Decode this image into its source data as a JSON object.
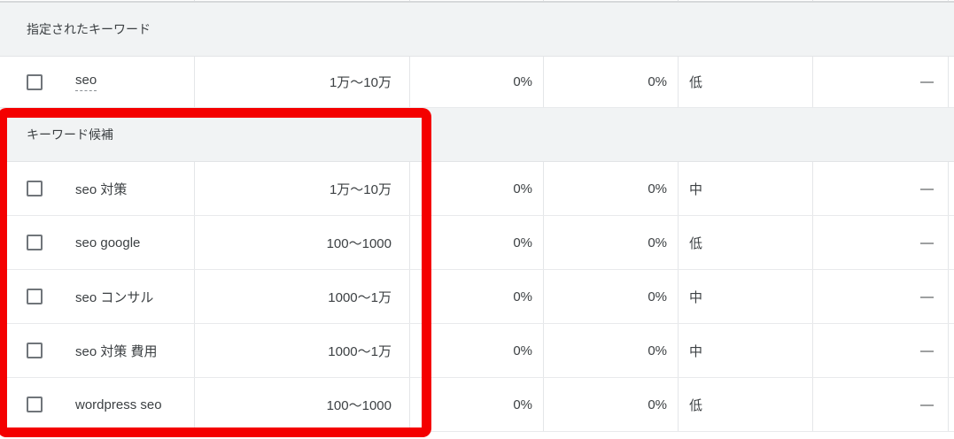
{
  "table": {
    "sections": [
      {
        "header": "指定されたキーワード",
        "rows": [
          {
            "keyword": "seo",
            "volume": "1万〜10万",
            "pct1": "0%",
            "pct2": "0%",
            "competition": "低",
            "extra": "—"
          }
        ]
      },
      {
        "header": "キーワード候補",
        "rows": [
          {
            "keyword": "seo 対策",
            "volume": "1万〜10万",
            "pct1": "0%",
            "pct2": "0%",
            "competition": "中",
            "extra": "—"
          },
          {
            "keyword": "seo google",
            "volume": "100〜1000",
            "pct1": "0%",
            "pct2": "0%",
            "competition": "低",
            "extra": "—"
          },
          {
            "keyword": "seo コンサル",
            "volume": "1000〜1万",
            "pct1": "0%",
            "pct2": "0%",
            "competition": "中",
            "extra": "—"
          },
          {
            "keyword": "seo 対策 費用",
            "volume": "1000〜1万",
            "pct1": "0%",
            "pct2": "0%",
            "competition": "中",
            "extra": "—"
          },
          {
            "keyword": "wordpress seo",
            "volume": "100〜1000",
            "pct1": "0%",
            "pct2": "0%",
            "competition": "低",
            "extra": "—"
          }
        ]
      }
    ]
  },
  "annotation": {
    "shape": "rectangle",
    "color": "#f40000",
    "highlights": "キーワード候補"
  },
  "colors": {
    "band_bg": "#f1f3f4",
    "text": "#3c4043",
    "divider": "#e4e6e8",
    "checkbox_border": "#70757a"
  }
}
